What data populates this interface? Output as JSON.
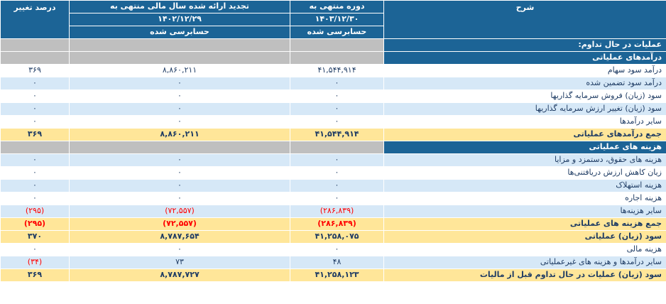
{
  "table": {
    "header": {
      "description": "شرح",
      "current_period": {
        "title": "دوره منتهی به",
        "date": "۱۴۰۳/۱۲/۳۰",
        "audit_status": "حسابرسی شده"
      },
      "prior_period": {
        "title": "تجدید ارائه شده سال مالی منتهی به",
        "date": "۱۴۰۲/۱۲/۲۹",
        "audit_status": "حسابرسی شده"
      },
      "percent_change": "درصد تغییر"
    },
    "rows": [
      {
        "style": "section",
        "label": "عملیات در حال تداوم:"
      },
      {
        "style": "section",
        "label": "درآمدهای عملیاتی"
      },
      {
        "style": "white",
        "label": "درآمد سود سهام",
        "current": "۴۱,۵۴۴,۹۱۴",
        "prior": "۸,۸۶۰,۲۱۱",
        "change": "۳۶۹"
      },
      {
        "style": "blue",
        "label": "درآمد سود تضمین شده",
        "current": "۰",
        "prior": "۰",
        "change": "۰"
      },
      {
        "style": "white",
        "label": "سود (زیان) فروش سرمایه گذاریها",
        "current": "۰",
        "prior": "۰",
        "change": "۰"
      },
      {
        "style": "blue",
        "label": "سود (زیان) تغییر ارزش سرمایه گذاریها",
        "current": "۰",
        "prior": "۰",
        "change": "۰"
      },
      {
        "style": "white",
        "label": "سایر درآمدها",
        "current": "۰",
        "prior": "۰",
        "change": "۰"
      },
      {
        "style": "yellow",
        "label": "جمع درآمدهای عملیاتی",
        "current": "۴۱,۵۴۴,۹۱۴",
        "prior": "۸,۸۶۰,۲۱۱",
        "change": "۳۶۹"
      },
      {
        "style": "section",
        "label": "هزینه های عملیاتی"
      },
      {
        "style": "blue",
        "label": "هزینه های حقوق، دستمزد و مزایا",
        "current": "۰",
        "prior": "۰",
        "change": "۰"
      },
      {
        "style": "white",
        "label": "زیان کاهش ارزش دریافتنی‌ها",
        "current": "۰",
        "prior": "۰",
        "change": "۰"
      },
      {
        "style": "blue",
        "label": "هزینه استهلاک",
        "current": "۰",
        "prior": "۰",
        "change": "۰"
      },
      {
        "style": "white",
        "label": "هزینه اجاره",
        "current": "۰",
        "prior": "۰",
        "change": "۰"
      },
      {
        "style": "blue",
        "label": "سایر هزینه‌ها",
        "current": "(۲۸۶,۸۳۹)",
        "prior": "(۷۲,۵۵۷)",
        "change": "(۲۹۵)"
      },
      {
        "style": "yellow",
        "label": "جمع هزینه های عملیاتی",
        "current": "(۲۸۶,۸۳۹)",
        "prior": "(۷۲,۵۵۷)",
        "change": "(۲۹۵)"
      },
      {
        "style": "yellow",
        "label": "سود (زیان) عملیاتی",
        "current": "۴۱,۲۵۸,۰۷۵",
        "prior": "۸,۷۸۷,۶۵۴",
        "change": "۳۷۰"
      },
      {
        "style": "white",
        "label": "هزینه مالی",
        "current": "۰",
        "prior": "۰",
        "change": "۰"
      },
      {
        "style": "blue",
        "label": "سایر درآمدها و هزینه های غیرعملیاتی",
        "current": "۴۸",
        "prior": "۷۳",
        "change": "(۳۴)"
      },
      {
        "style": "yellow",
        "label": "سود (زیان) عملیات در حال تداوم قبل از مالیات",
        "current": "۴۱,۲۵۸,۱۲۳",
        "prior": "۸,۷۸۷,۷۲۷",
        "change": "۳۶۹"
      }
    ]
  },
  "colors": {
    "header_bg": "#1C6496",
    "section_bg": "#1C6496",
    "section_empty_cell_bg": "#BFBFBF",
    "stripe_blue": "#D6E8F7",
    "total_yellow": "#FFE699",
    "negative_red": "#FF0000",
    "text_navy": "#1F3C64"
  }
}
